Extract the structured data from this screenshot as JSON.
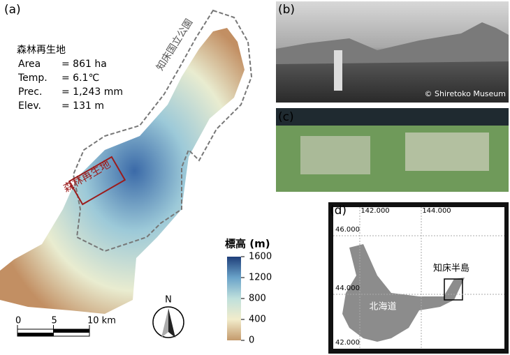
{
  "panel_a": {
    "label": "(a)",
    "site_title": "森林再生地",
    "stats": [
      {
        "name": "Area",
        "value": "= 861 ha"
      },
      {
        "name": "Temp.",
        "value": "= 6.1℃"
      },
      {
        "name": "Prec.",
        "value": "= 1,243 mm"
      },
      {
        "name": "Elev.",
        "value": "= 131 m"
      }
    ],
    "park_label": "知床国立公園",
    "site_label": "森林再生地",
    "colorbar": {
      "title": "標高 (m)",
      "lim": [
        0,
        1600
      ],
      "ticks": [
        0,
        400,
        800,
        1200,
        1600
      ]
    },
    "scale_bar": {
      "lim": [
        0,
        10
      ],
      "ticks": [
        0,
        5,
        {
          "value": 10,
          "label": "10 km"
        }
      ]
    },
    "north": "N"
  },
  "panel_b": {
    "label": "(b)",
    "credit": "© Shiretoko Museum"
  },
  "panel_c": {
    "label": "(c)"
  },
  "panel_d": {
    "label": "(d)",
    "lon_ticks": [
      {
        "value": 142,
        "label": "142.000"
      },
      {
        "value": 144,
        "label": "144.000"
      }
    ],
    "lat_ticks": [
      {
        "value": 46,
        "label": "46.000"
      },
      {
        "value": 44,
        "label": "44.000"
      },
      {
        "value": 42,
        "label": "42.000"
      }
    ],
    "island_label": "北海道",
    "peninsula_label": "知床半島"
  }
}
